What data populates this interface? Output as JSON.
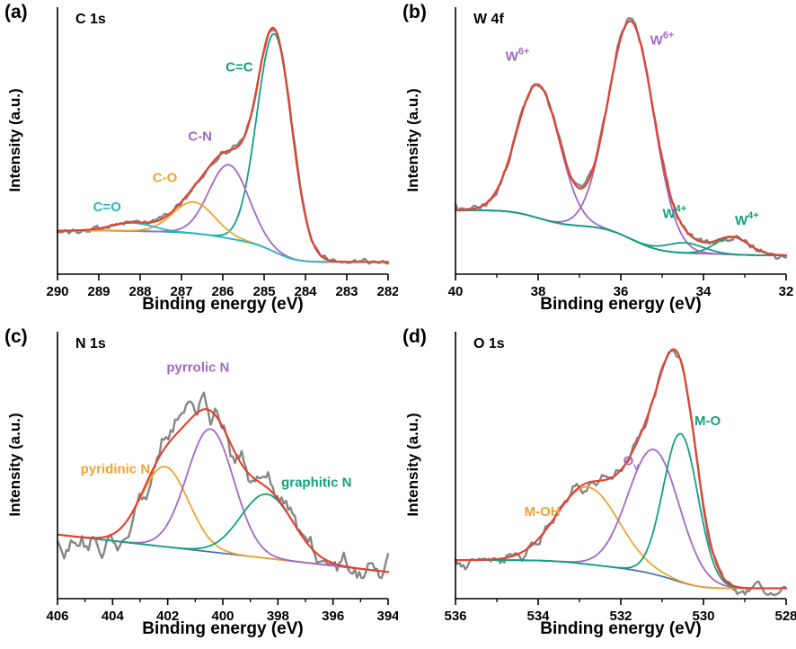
{
  "figure": {
    "description": "XPS spectra, four fitted panels",
    "background": "#ffffff"
  },
  "palette": {
    "raw": "#868686",
    "envelope": "#e6402e",
    "teal": "#13a07e",
    "purple": "#a368c5",
    "orange": "#f0a32f",
    "cyan": "#27b7c6",
    "blue": "#3f6fb4"
  },
  "chart_data": [
    {
      "type": "line",
      "panel_label": "(a)",
      "title": "C 1s",
      "xlabel": "Binding energy (eV)",
      "ylabel": "Intensity (a.u.)",
      "x_range": [
        290,
        282
      ],
      "x_ticks": [
        290,
        289,
        288,
        287,
        286,
        285,
        284,
        283,
        282
      ],
      "minor_ticks": false,
      "ylim": [
        0,
        0.98
      ],
      "noise": 0.012,
      "raw_points": 260,
      "series": {
        "raw": {
          "name": "measured spectrum",
          "color": "#868686"
        },
        "envelope": {
          "name": "fit envelope",
          "color": "#e6402e"
        },
        "baseline": {
          "name": "background",
          "color": "#27b7c6",
          "shape": "shirley",
          "left": 0.16,
          "right": 0.045
        }
      },
      "components": [
        {
          "name": "C=C",
          "center": 284.75,
          "sigma": 0.42,
          "amp": 0.8,
          "color": "#13a07e"
        },
        {
          "name": "C-N",
          "center": 285.85,
          "sigma": 0.48,
          "amp": 0.27,
          "color": "#a368c5"
        },
        {
          "name": "C-O",
          "center": 286.7,
          "sigma": 0.5,
          "amp": 0.115,
          "color": "#f0a32f"
        },
        {
          "name": "C=O",
          "center": 288.2,
          "sigma": 0.5,
          "amp": 0.03,
          "color": "#27b7c6"
        }
      ],
      "annotations": [
        {
          "text": "C=C",
          "color": "#13a07e",
          "x": 285.6,
          "yfrac": 0.76
        },
        {
          "text": "C-N",
          "color": "#a368c5",
          "x": 286.55,
          "yfrac": 0.5
        },
        {
          "text": "C-O",
          "color": "#f0a32f",
          "x": 287.4,
          "yfrac": 0.345
        },
        {
          "text": "C=O",
          "color": "#27b7c6",
          "x": 288.8,
          "yfrac": 0.235
        }
      ]
    },
    {
      "type": "line",
      "panel_label": "(b)",
      "title": "W 4f",
      "xlabel": "Binding energy (eV)",
      "ylabel": "Intensity (a.u.)",
      "x_range": [
        40,
        32
      ],
      "x_ticks": [
        40,
        38,
        36,
        34,
        32
      ],
      "minor_ticks": true,
      "ylim": [
        0,
        0.92
      ],
      "noise": 0.015,
      "raw_points": 260,
      "series": {
        "raw": {
          "name": "measured spectrum",
          "color": "#868686"
        },
        "envelope": {
          "name": "fit envelope",
          "color": "#e6402e"
        },
        "baseline": {
          "name": "background",
          "color": "#13a07e",
          "shape": "shirley",
          "left": 0.22,
          "right": 0.065
        }
      },
      "components": [
        {
          "name": "W6+",
          "center": 38.0,
          "sigma": 0.52,
          "amp": 0.46,
          "color": "#a368c5"
        },
        {
          "name": "W6+",
          "center": 35.75,
          "sigma": 0.55,
          "amp": 0.75,
          "color": "#a368c5"
        },
        {
          "name": "W4+",
          "center": 34.45,
          "sigma": 0.45,
          "amp": 0.035,
          "color": "#13a07e"
        },
        {
          "name": "W4+",
          "center": 33.3,
          "sigma": 0.4,
          "amp": 0.06,
          "color": "#13a07e"
        }
      ],
      "annotations": [
        {
          "text": "W",
          "sup": "6+",
          "color": "#a368c5",
          "x": 38.5,
          "yfrac": 0.8
        },
        {
          "text": "W",
          "sup": "6+",
          "color": "#a368c5",
          "x": 35.0,
          "yfrac": 0.86
        },
        {
          "text": "W",
          "sup": "4+",
          "color": "#13a07e",
          "x": 34.7,
          "yfrac": 0.21
        },
        {
          "text": "W",
          "sup": "4+",
          "color": "#13a07e",
          "x": 32.95,
          "yfrac": 0.185
        }
      ]
    },
    {
      "type": "line",
      "panel_label": "(c)",
      "title": "N 1s",
      "xlabel": "Binding energy (eV)",
      "ylabel": "Intensity (a.u.)",
      "x_range": [
        406,
        394
      ],
      "x_ticks": [
        406,
        404,
        402,
        400,
        398,
        396,
        394
      ],
      "minor_ticks": true,
      "ylim": [
        0,
        1.0
      ],
      "noise": 0.065,
      "raw_points": 150,
      "series": {
        "raw": {
          "name": "measured spectrum",
          "color": "#868686"
        },
        "envelope": {
          "name": "fit envelope",
          "color": "#e6402e"
        },
        "baseline": {
          "name": "background",
          "color": "#3f6fb4",
          "shape": "linear",
          "left": 0.24,
          "right": 0.1
        }
      },
      "components": [
        {
          "name": "pyridinic N",
          "center": 402.1,
          "sigma": 0.85,
          "amp": 0.3,
          "color": "#f0a32f"
        },
        {
          "name": "pyrrolic N",
          "center": 400.45,
          "sigma": 0.85,
          "amp": 0.46,
          "color": "#a368c5"
        },
        {
          "name": "graphitic N",
          "center": 398.4,
          "sigma": 0.95,
          "amp": 0.24,
          "color": "#13a07e"
        }
      ],
      "annotations": [
        {
          "text": "pyridinic N",
          "color": "#f0a32f",
          "x": 403.9,
          "yfrac": 0.47
        },
        {
          "text": "pyrrolic N",
          "color": "#a368c5",
          "x": 400.9,
          "yfrac": 0.85
        },
        {
          "text": "graphitic N",
          "color": "#13a07e",
          "x": 396.6,
          "yfrac": 0.42
        }
      ]
    },
    {
      "type": "line",
      "panel_label": "(d)",
      "title": "O 1s",
      "xlabel": "Binding energy (eV)",
      "ylabel": "Intensity (a.u.)",
      "x_range": [
        536,
        528
      ],
      "x_ticks": [
        536,
        534,
        532,
        530,
        528
      ],
      "minor_ticks": true,
      "ylim": [
        0,
        0.9
      ],
      "noise": 0.028,
      "raw_points": 170,
      "series": {
        "raw": {
          "name": "measured spectrum",
          "color": "#868686"
        },
        "envelope": {
          "name": "fit envelope",
          "color": "#e6402e"
        },
        "baseline": {
          "name": "background",
          "color": "#3f6fb4",
          "shape": "shirley",
          "left": 0.13,
          "right": 0.035
        }
      },
      "components": [
        {
          "name": "M-OH",
          "center": 532.8,
          "sigma": 0.75,
          "amp": 0.26,
          "color": "#f0a32f"
        },
        {
          "name": "Ov",
          "center": 531.2,
          "sigma": 0.62,
          "amp": 0.42,
          "color": "#a368c5"
        },
        {
          "name": "M-O",
          "center": 530.55,
          "sigma": 0.42,
          "amp": 0.5,
          "color": "#13a07e"
        }
      ],
      "annotations": [
        {
          "text": "M-OH",
          "color": "#f0a32f",
          "x": 533.9,
          "yfrac": 0.31
        },
        {
          "text": "O",
          "sub": "v",
          "color": "#a368c5",
          "x": 531.75,
          "yfrac": 0.5
        },
        {
          "text": "M-O",
          "color": "#13a07e",
          "x": 529.9,
          "yfrac": 0.65
        }
      ]
    }
  ]
}
